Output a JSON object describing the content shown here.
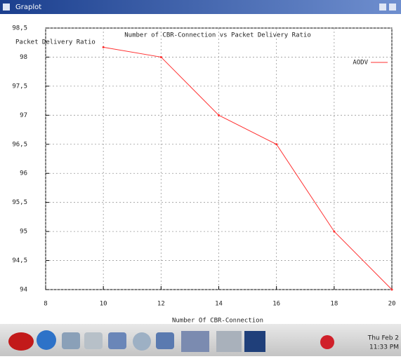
{
  "window": {
    "title": "Graplot"
  },
  "chart_data": {
    "type": "line",
    "title": "Number of CBR-Connection vs Packet Delivery Ratio",
    "y_label": "Packet Delivery Ratio",
    "x_label": "Number Of CBR-Connection",
    "x": [
      10,
      12,
      14,
      16,
      18,
      20
    ],
    "series": [
      {
        "name": "AODV",
        "color": "#ff3030",
        "values": [
          98.17,
          98.0,
          97.0,
          96.5,
          95.0,
          94.0
        ]
      }
    ],
    "xlim": [
      8,
      20
    ],
    "xticks": [
      8,
      10,
      12,
      14,
      16,
      18,
      20
    ],
    "ylim": [
      94,
      98.5
    ],
    "yticks": [
      94,
      {
        "value": 94.5,
        "label": "94,5"
      },
      95,
      {
        "value": 95.5,
        "label": "95,5"
      },
      96,
      {
        "value": 96.5,
        "label": "96,5"
      },
      97,
      {
        "value": 97.5,
        "label": "97,5"
      },
      98,
      {
        "value": 98.5,
        "label": "98,5"
      }
    ],
    "grid": true,
    "legend": "top-right"
  },
  "taskbar": {
    "clock": [
      "Thu Feb 2",
      "11:33 PM"
    ]
  }
}
